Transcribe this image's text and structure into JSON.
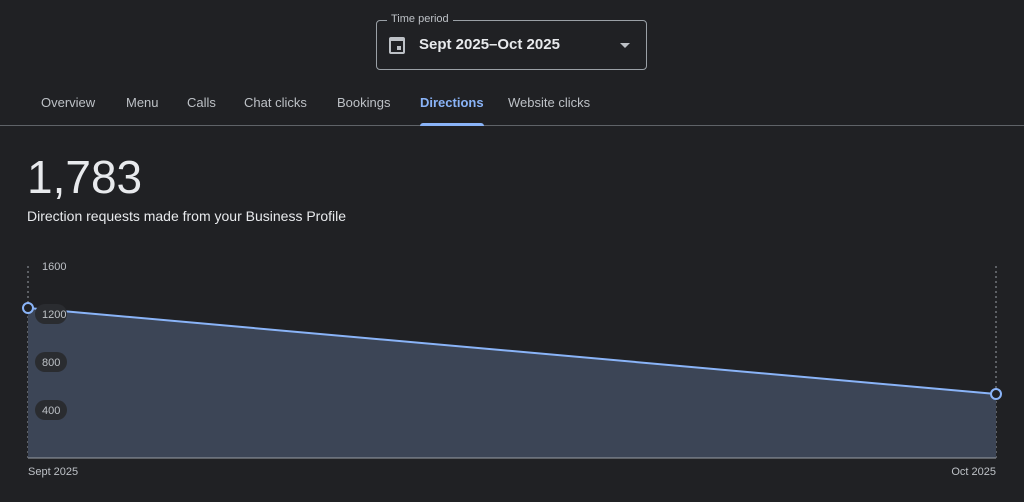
{
  "time_period": {
    "label": "Time period",
    "value": "Sept 2025–Oct 2025",
    "icon": "calendar-icon"
  },
  "tabs": [
    {
      "label": "Overview"
    },
    {
      "label": "Menu"
    },
    {
      "label": "Calls"
    },
    {
      "label": "Chat clicks"
    },
    {
      "label": "Bookings"
    },
    {
      "label": "Directions",
      "active": true
    },
    {
      "label": "Website clicks"
    }
  ],
  "metric": {
    "value": "1,783",
    "description": "Direction requests made from your Business Profile"
  },
  "chart_data": {
    "type": "area",
    "categories": [
      "Sept 2025",
      "Oct 2025"
    ],
    "values": [
      1250,
      533
    ],
    "yticks": [
      400,
      800,
      1200,
      1600
    ],
    "ylim": [
      0,
      1600
    ],
    "color": "#8ab4f8",
    "fill": "#3c4556"
  }
}
